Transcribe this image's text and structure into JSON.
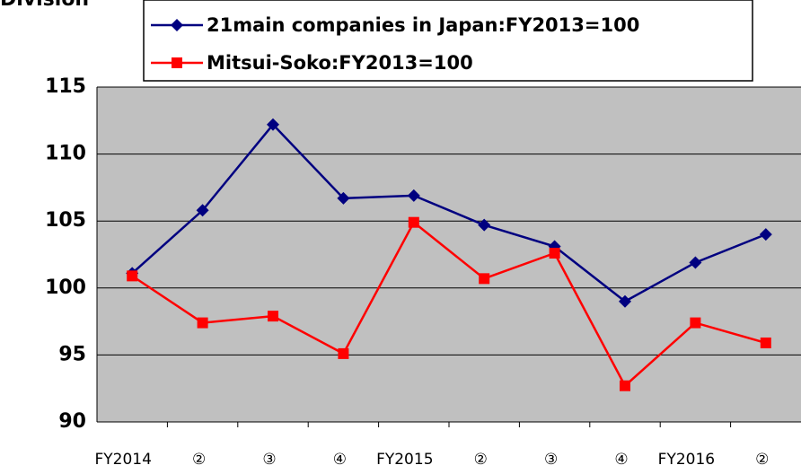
{
  "chart_data": {
    "type": "line",
    "title": "Division",
    "categories": [
      "FY2014",
      "②",
      "③",
      "④",
      "FY2015",
      "②",
      "③",
      "④",
      "FY2016",
      "②"
    ],
    "series": [
      {
        "name": "21main companies in Japan:FY2013=100",
        "color": "#000080",
        "marker": "diamond",
        "values": [
          101.1,
          105.8,
          112.2,
          106.7,
          106.9,
          104.7,
          103.1,
          99.0,
          101.9,
          104.0
        ]
      },
      {
        "name": "Mitsui-Soko:FY2013=100",
        "color": "#ff0000",
        "marker": "square",
        "values": [
          100.9,
          97.4,
          97.9,
          95.1,
          104.9,
          100.7,
          102.6,
          92.7,
          97.4,
          95.9
        ]
      }
    ],
    "ylim": [
      90,
      115
    ],
    "yticks": [
      90,
      95,
      100,
      105,
      110,
      115
    ],
    "grid": true,
    "background": "#c0c0c0"
  }
}
